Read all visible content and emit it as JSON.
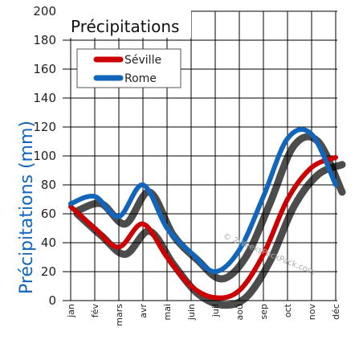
{
  "chart_data": {
    "type": "line",
    "title": "Précipitations",
    "ylabel": "Précipitations (mm)",
    "xlabel": "",
    "categories": [
      "jan",
      "fév",
      "mars",
      "avr",
      "mai",
      "juin",
      "juil",
      "aoû",
      "sep",
      "oct",
      "nov",
      "déc"
    ],
    "ylim": [
      0,
      200
    ],
    "yticks": [
      "0",
      "20",
      "40",
      "60",
      "80",
      "100",
      "120",
      "140",
      "160",
      "180",
      "200"
    ],
    "grid": true,
    "legend_position": "top-left",
    "series": [
      {
        "name": "Séville",
        "color": "#cc0000",
        "values": [
          65,
          50,
          37,
          53,
          30,
          10,
          2,
          7,
          32,
          70,
          92,
          99
        ]
      },
      {
        "name": "Rome",
        "color": "#1166bb",
        "values": [
          67,
          72,
          58,
          80,
          50,
          33,
          20,
          35,
          72,
          112,
          115,
          80
        ]
      }
    ],
    "watermark": "© 2WeeksPackPack.com"
  }
}
